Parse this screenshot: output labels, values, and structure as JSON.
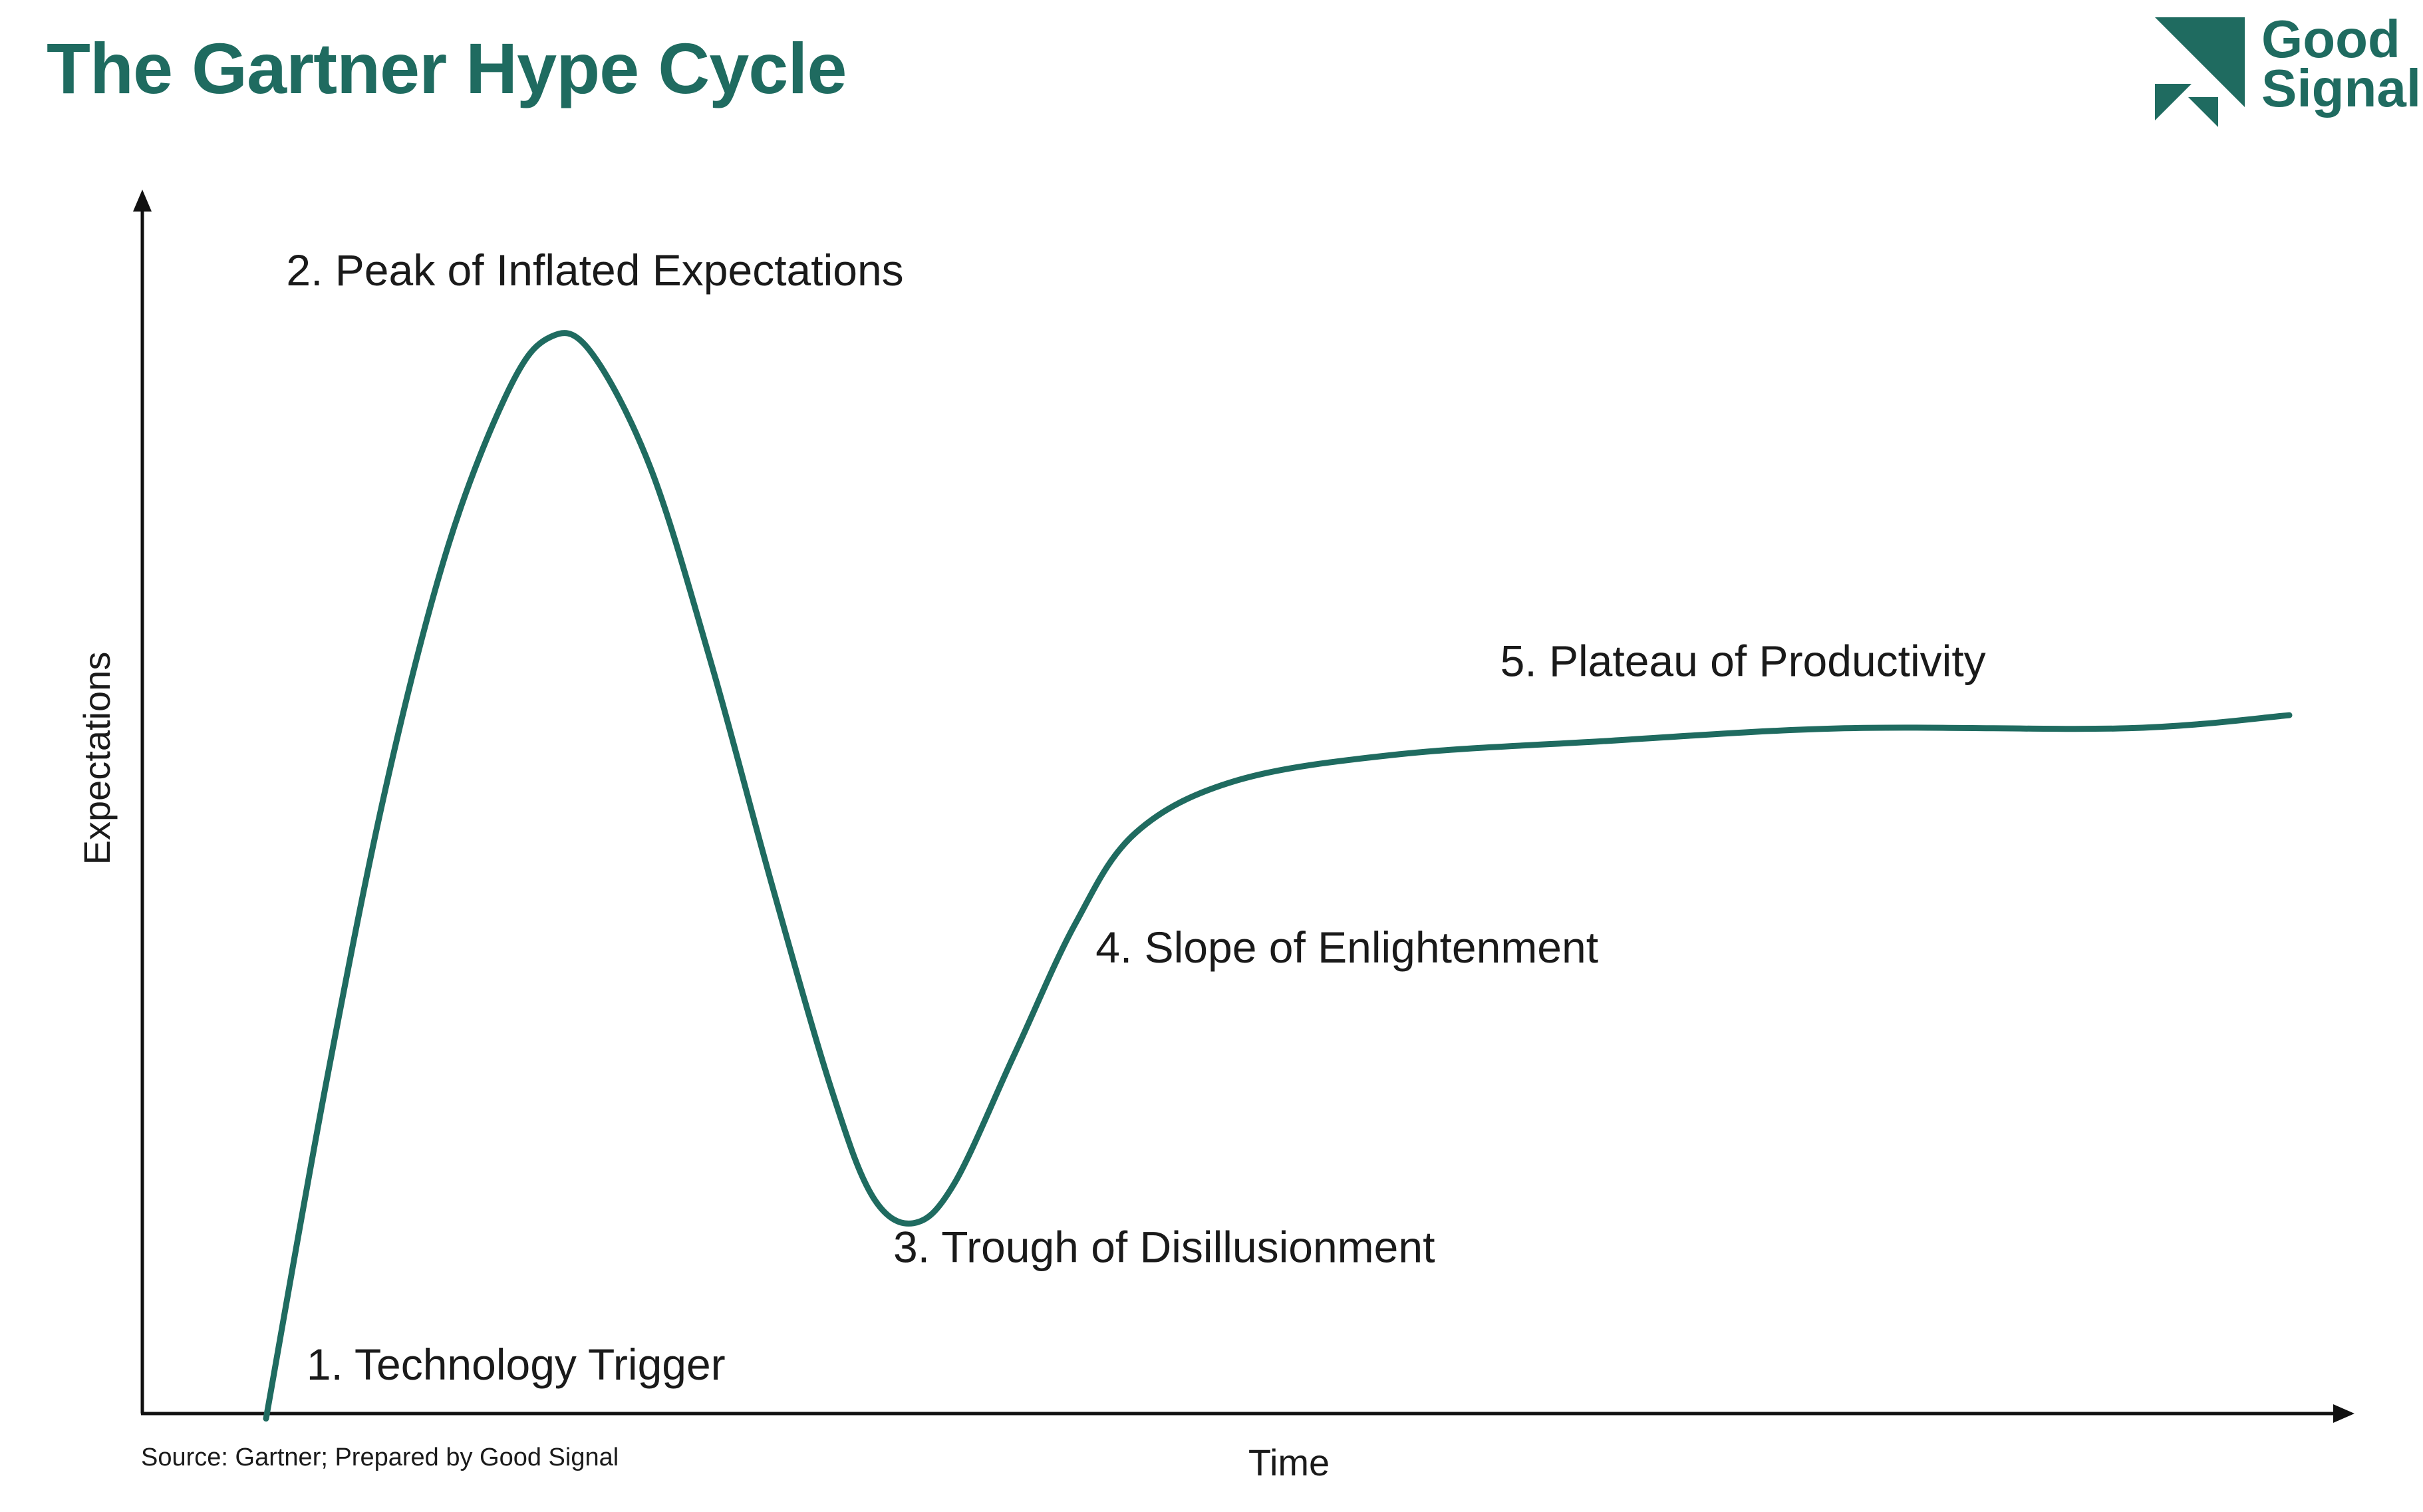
{
  "header": {
    "title": "The Gartner Hype Cycle"
  },
  "logo": {
    "line1": "Good",
    "line2": "Signal",
    "color": "#1f6b60"
  },
  "footer": {
    "source": "Source: Gartner; Prepared by Good Signal"
  },
  "chart_data": {
    "type": "line",
    "title": "The Gartner Hype Cycle",
    "xlabel": "Time",
    "ylabel": "Expectations",
    "grid": false,
    "axis_ticks": false,
    "line_color": "#1f6b60",
    "series": [
      {
        "points": [
          [
            0.0,
            0.06
          ],
          [
            0.03,
            0.32
          ],
          [
            0.06,
            0.55
          ],
          [
            0.09,
            0.73
          ],
          [
            0.12,
            0.85
          ],
          [
            0.14,
            0.89
          ],
          [
            0.16,
            0.88
          ],
          [
            0.19,
            0.79
          ],
          [
            0.22,
            0.64
          ],
          [
            0.25,
            0.47
          ],
          [
            0.28,
            0.31
          ],
          [
            0.3,
            0.23
          ],
          [
            0.32,
            0.21
          ],
          [
            0.34,
            0.24
          ],
          [
            0.37,
            0.34
          ],
          [
            0.4,
            0.44
          ],
          [
            0.43,
            0.51
          ],
          [
            0.48,
            0.55
          ],
          [
            0.56,
            0.57
          ],
          [
            0.66,
            0.58
          ],
          [
            0.78,
            0.59
          ],
          [
            0.92,
            0.59
          ],
          [
            1.0,
            0.6
          ]
        ]
      }
    ],
    "annotations": [
      {
        "text": "1. Technology Trigger",
        "x": 0.02,
        "y": 0.09
      },
      {
        "text": "2. Peak of Inflated Expectations",
        "x": 0.01,
        "y": 0.93
      },
      {
        "text": "3. Trough of Disillusionment",
        "x": 0.31,
        "y": 0.18
      },
      {
        "text": "4. Slope of Enlightenment",
        "x": 0.41,
        "y": 0.41
      },
      {
        "text": "5. Plateau of Productivity",
        "x": 0.61,
        "y": 0.63
      }
    ]
  }
}
